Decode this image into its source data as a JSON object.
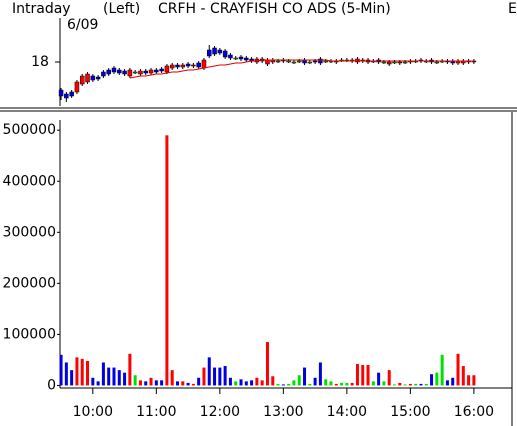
{
  "chart_data": [
    {
      "type": "candlestick",
      "title": "CRFH - CRAYFISH CO ADS (5-Min)",
      "annotations": [
        "Intraday",
        "6/09",
        "(Left)",
        "E"
      ],
      "x": [
        "09:30",
        "09:35",
        "09:40",
        "09:45",
        "09:50",
        "09:55",
        "10:00",
        "10:05",
        "10:10",
        "10:15",
        "10:20",
        "10:25",
        "10:30",
        "10:35",
        "10:40",
        "10:45",
        "10:50",
        "10:55",
        "11:00",
        "11:05",
        "11:10",
        "11:15",
        "11:20",
        "11:25",
        "11:30",
        "11:35",
        "11:40",
        "11:45",
        "11:50",
        "11:55",
        "12:00",
        "12:05",
        "12:10",
        "12:15",
        "12:20",
        "12:25",
        "12:30",
        "12:35",
        "12:40",
        "12:45",
        "12:50",
        "12:55",
        "13:00",
        "13:05",
        "13:10",
        "13:15",
        "13:20",
        "13:25",
        "13:30",
        "13:35",
        "13:40",
        "13:45",
        "13:50",
        "13:55",
        "14:00",
        "14:05",
        "14:10",
        "14:15",
        "14:20",
        "14:25",
        "14:30",
        "14:35",
        "14:40",
        "14:45",
        "14:50",
        "14:55",
        "15:00",
        "15:05",
        "15:10",
        "15:15",
        "15:20",
        "15:25",
        "15:30",
        "15:35",
        "15:40",
        "15:45",
        "15:50",
        "15:55",
        "16:00"
      ],
      "open": [
        17.72,
        17.68,
        17.7,
        17.7,
        17.78,
        17.8,
        17.86,
        17.85,
        17.9,
        17.92,
        17.94,
        17.92,
        17.91,
        17.86,
        17.9,
        17.88,
        17.91,
        17.89,
        17.92,
        17.93,
        17.9,
        17.94,
        17.97,
        17.95,
        17.98,
        17.96,
        17.99,
        17.94,
        18.12,
        18.14,
        18.12,
        18.11,
        18.07,
        18.04,
        18.05,
        18.04,
        18.03,
        18.0,
        18.01,
        17.98,
        18.0,
        18.01,
        18.02,
        18.01,
        18.0,
        18.01,
        18.02,
        18.0,
        18.01,
        18.03,
        18.01,
        18.01,
        18.0,
        18.02,
        18.02,
        18.01,
        18.0,
        18.01,
        18.0,
        18.01,
        18.02,
        18.0,
        17.98,
        18.0,
        17.99,
        18.0,
        18.0,
        18.01,
        18.02,
        18.01,
        18.02,
        18.0,
        18.01,
        18.01,
        18.01,
        17.99,
        17.99,
        18.0,
        18.0
      ],
      "high": [
        17.74,
        17.7,
        17.72,
        17.82,
        17.88,
        17.9,
        17.88,
        17.87,
        17.92,
        17.94,
        17.96,
        17.94,
        17.93,
        17.94,
        17.92,
        17.93,
        17.93,
        17.94,
        17.94,
        17.95,
        17.98,
        17.99,
        17.99,
        17.99,
        18.0,
        17.99,
        18.01,
        18.04,
        18.17,
        18.16,
        18.14,
        18.13,
        18.09,
        18.06,
        18.07,
        18.06,
        18.05,
        18.05,
        18.05,
        18.04,
        18.04,
        18.03,
        18.04,
        18.03,
        18.02,
        18.03,
        18.04,
        18.02,
        18.03,
        18.05,
        18.03,
        18.03,
        18.03,
        18.04,
        18.04,
        18.04,
        18.05,
        18.04,
        18.04,
        18.03,
        18.04,
        18.02,
        18.02,
        18.02,
        18.02,
        18.02,
        18.03,
        18.03,
        18.04,
        18.03,
        18.04,
        18.02,
        18.03,
        18.03,
        18.03,
        18.03,
        18.03,
        18.03,
        18.03
      ],
      "low": [
        17.62,
        17.6,
        17.64,
        17.68,
        17.76,
        17.78,
        17.8,
        17.81,
        17.84,
        17.86,
        17.88,
        17.87,
        17.86,
        17.84,
        17.88,
        17.86,
        17.87,
        17.87,
        17.88,
        17.89,
        17.88,
        17.92,
        17.93,
        17.93,
        17.94,
        17.94,
        17.93,
        17.92,
        18.04,
        18.06,
        18.07,
        18.03,
        18.02,
        18.02,
        18.01,
        18.0,
        17.99,
        17.98,
        17.99,
        17.96,
        17.98,
        17.99,
        17.99,
        17.99,
        17.98,
        17.99,
        17.97,
        17.98,
        17.98,
        17.97,
        17.99,
        17.99,
        17.98,
        18.0,
        18.0,
        17.99,
        17.98,
        17.99,
        17.98,
        17.99,
        17.98,
        17.98,
        17.96,
        17.98,
        17.97,
        17.98,
        17.98,
        17.99,
        17.99,
        17.99,
        17.98,
        17.98,
        17.99,
        17.98,
        17.97,
        17.97,
        17.97,
        17.98,
        17.98
      ],
      "close": [
        17.66,
        17.64,
        17.66,
        17.8,
        17.86,
        17.88,
        17.82,
        17.83,
        17.86,
        17.88,
        17.9,
        17.89,
        17.88,
        17.92,
        17.9,
        17.91,
        17.89,
        17.92,
        17.9,
        17.91,
        17.96,
        17.97,
        17.95,
        17.97,
        17.96,
        17.97,
        17.95,
        18.02,
        18.06,
        18.08,
        18.09,
        18.05,
        18.04,
        18.04,
        18.03,
        18.02,
        18.01,
        18.03,
        18.03,
        18.02,
        18.02,
        18.01,
        18.01,
        18.01,
        18.0,
        18.01,
        17.99,
        18.0,
        18.0,
        17.99,
        18.01,
        18.01,
        18.01,
        18.02,
        18.02,
        18.02,
        18.03,
        18.02,
        18.02,
        18.01,
        18.0,
        18.0,
        18.0,
        18.0,
        18.0,
        18.0,
        18.01,
        18.01,
        18.01,
        18.01,
        18.0,
        18.0,
        18.01,
        18.0,
        17.99,
        18.01,
        18.01,
        18.01,
        18.01
      ],
      "ma": {
        "color": "#e00000",
        "values": [
          null,
          null,
          null,
          null,
          null,
          null,
          null,
          null,
          null,
          null,
          null,
          null,
          null,
          17.84,
          17.85,
          17.86,
          17.86,
          17.87,
          17.88,
          17.88,
          17.89,
          17.9,
          17.9,
          17.91,
          17.92,
          17.92,
          17.93,
          17.94,
          17.95,
          17.96,
          17.97,
          17.97,
          17.98,
          17.99,
          17.99,
          18.0,
          18.01,
          18.01,
          18.02,
          18.02,
          18.02,
          18.02,
          18.02,
          18.02,
          18.02,
          18.02,
          18.02,
          18.02,
          18.02,
          18.02,
          18.02,
          18.01,
          18.01,
          18.01,
          18.01,
          18.01,
          18.01,
          18.01,
          18.01,
          18.01,
          18.01,
          18.01,
          18.01,
          18.01,
          18.01,
          18.01,
          18.01,
          18.01,
          18.01,
          18.01,
          18.01,
          18.01,
          18.01,
          18.01,
          18.01,
          18.01,
          18.01,
          18.01,
          18.01
        ]
      },
      "up_color": "#ff0000",
      "down_color": "#0000e0",
      "flat_color": "#00e000",
      "xlim": [
        "09:29",
        "16:36"
      ],
      "ylim": [
        17.56,
        18.44
      ],
      "yticks": [
        18
      ]
    },
    {
      "type": "bar",
      "x": [
        "09:30",
        "09:35",
        "09:40",
        "09:45",
        "09:50",
        "09:55",
        "10:00",
        "10:05",
        "10:10",
        "10:15",
        "10:20",
        "10:25",
        "10:30",
        "10:35",
        "10:40",
        "10:45",
        "10:50",
        "10:55",
        "11:00",
        "11:05",
        "11:10",
        "11:15",
        "11:20",
        "11:25",
        "11:30",
        "11:35",
        "11:40",
        "11:45",
        "11:50",
        "11:55",
        "12:00",
        "12:05",
        "12:10",
        "12:15",
        "12:20",
        "12:25",
        "12:30",
        "12:35",
        "12:40",
        "12:45",
        "12:50",
        "12:55",
        "13:00",
        "13:05",
        "13:10",
        "13:15",
        "13:20",
        "13:25",
        "13:30",
        "13:35",
        "13:40",
        "13:45",
        "13:50",
        "13:55",
        "14:00",
        "14:05",
        "14:10",
        "14:15",
        "14:20",
        "14:25",
        "14:30",
        "14:35",
        "14:40",
        "14:45",
        "14:50",
        "14:55",
        "15:00",
        "15:05",
        "15:10",
        "15:15",
        "15:20",
        "15:25",
        "15:30",
        "15:35",
        "15:40",
        "15:45",
        "15:50",
        "15:55",
        "16:00"
      ],
      "values": [
        60000,
        45000,
        30000,
        55000,
        52000,
        48000,
        15000,
        8000,
        45000,
        35000,
        35000,
        30000,
        25000,
        62000,
        20000,
        10000,
        8000,
        15000,
        10000,
        10000,
        490000,
        30000,
        8000,
        8000,
        5000,
        3000,
        15000,
        35000,
        55000,
        35000,
        35000,
        38000,
        15000,
        8000,
        12000,
        8000,
        10000,
        15000,
        10000,
        85000,
        18000,
        3000,
        2000,
        3000,
        10000,
        20000,
        35000,
        3000,
        15000,
        45000,
        12000,
        8000,
        3000,
        5000,
        5000,
        5000,
        42000,
        40000,
        40000,
        8000,
        25000,
        8000,
        30000,
        2000,
        5000,
        2000,
        3000,
        3000,
        3000,
        3000,
        22000,
        25000,
        60000,
        10000,
        15000,
        62000,
        38000,
        20000,
        20000
      ],
      "xlim": [
        "09:29",
        "16:36"
      ],
      "xticks": [
        "10:00",
        "11:00",
        "12:00",
        "13:00",
        "14:00",
        "15:00",
        "16:00"
      ],
      "ylim": [
        -5000,
        520000
      ],
      "yticks": [
        0,
        100000,
        200000,
        300000,
        400000,
        500000
      ]
    }
  ]
}
